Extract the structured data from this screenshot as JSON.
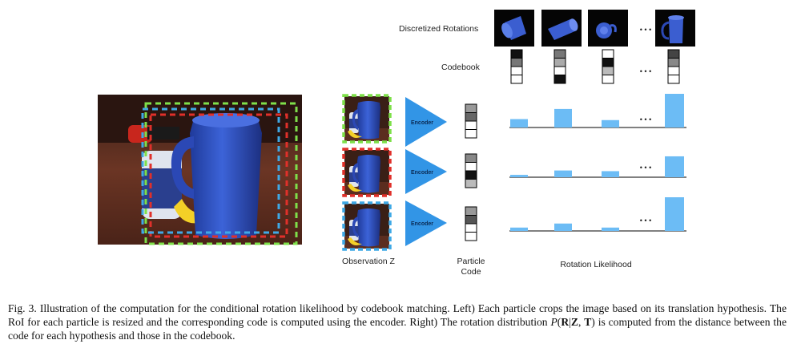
{
  "figure": {
    "labels": {
      "discretized_rotations": "Discretized Rotations",
      "codebook": "Codebook",
      "encoder": "Encoder",
      "observation": "Observation Z",
      "particle_code_line1": "Particle",
      "particle_code_line2": "Code",
      "rotation_likelihood": "Rotation Likelihood",
      "ellipsis": "• • •"
    },
    "codebook_codes": [
      [
        "#111111",
        "#777777",
        "#ffffff",
        "#ffffff"
      ],
      [
        "#777777",
        "#aaaaaa",
        "#ffffff",
        "#111111"
      ],
      [
        "#ffffff",
        "#111111",
        "#bbbbbb",
        "#ffffff"
      ],
      [
        "#444444",
        "#888888",
        "#ffffff",
        "#ffffff"
      ]
    ],
    "particle_codes": [
      [
        "#999999",
        "#666666",
        "#ffffff",
        "#ffffff"
      ],
      [
        "#888888",
        "#ffffff",
        "#111111",
        "#bbbbbb"
      ],
      [
        "#999999",
        "#555555",
        "#ffffff",
        "#ffffff"
      ]
    ],
    "particle_colors": [
      "#7ee04a",
      "#e0302a",
      "#3fa9e6"
    ],
    "bar_color": "#6cbcf5",
    "likelihoods": [
      [
        0.25,
        0.55,
        0.22,
        1.0
      ],
      [
        0.07,
        0.2,
        0.18,
        0.62
      ],
      [
        0.1,
        0.22,
        0.1,
        1.0
      ]
    ]
  },
  "caption": {
    "prefix": "Fig. 3.   Illustration of the computation for the conditional rotation likelihood by codebook matching. Left) Each particle crops the image based on its translation hypothesis. The RoI for each particle is resized and the corresponding code is computed using the encoder. Right) The rotation distribution ",
    "formula_p": "P",
    "formula_open": "(",
    "formula_r": "R",
    "formula_bar": "|",
    "formula_z": "Z",
    "formula_comma": ", ",
    "formula_t": "T",
    "formula_close": ")",
    "suffix": " is computed from the distance between the code for each hypothesis and those in the codebook."
  }
}
